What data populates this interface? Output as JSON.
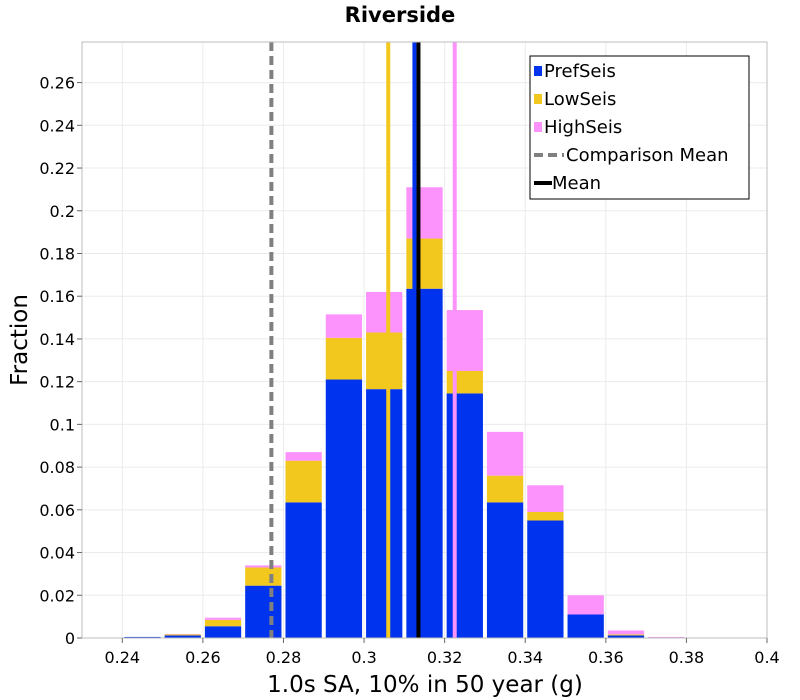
{
  "chart_data": {
    "type": "bar",
    "stacked": true,
    "title": "Riverside",
    "xlabel": "1.0s SA, 10% in 50 year (g)",
    "ylabel": "Fraction",
    "xlim": [
      0.23,
      0.4
    ],
    "ylim": [
      0,
      0.279
    ],
    "bin_width": 0.01,
    "bin_centers": [
      0.245,
      0.255,
      0.265,
      0.275,
      0.285,
      0.295,
      0.305,
      0.315,
      0.325,
      0.335,
      0.345,
      0.355,
      0.365,
      0.375,
      0.385
    ],
    "series": [
      {
        "name": "PrefSeis",
        "color": "#0033ee",
        "values": [
          0.0005,
          0.0012,
          0.0055,
          0.0245,
          0.0635,
          0.121,
          0.1165,
          0.1635,
          0.1145,
          0.0635,
          0.055,
          0.011,
          0.0012,
          0.0002,
          0.0
        ]
      },
      {
        "name": "LowSeis",
        "color": "#f2c81e",
        "values": [
          0.0,
          0.0005,
          0.003,
          0.0085,
          0.0195,
          0.0195,
          0.0265,
          0.0235,
          0.0105,
          0.0125,
          0.004,
          0.0,
          0.0005,
          0.0,
          0.0
        ]
      },
      {
        "name": "HighSeis",
        "color": "#fc92fc",
        "values": [
          0.0,
          0.0002,
          0.001,
          0.001,
          0.004,
          0.011,
          0.019,
          0.024,
          0.0285,
          0.0205,
          0.0125,
          0.009,
          0.0018,
          0.0003,
          0.0002
        ]
      }
    ],
    "vertical_lines": [
      {
        "name": "LowSeis Mean",
        "x": 0.306,
        "color": "#f2c81e",
        "style": "solid"
      },
      {
        "name": "HighSeis Mean",
        "x": 0.3225,
        "color": "#fc92fc",
        "style": "solid"
      },
      {
        "name": "PrefSeis Mean",
        "x": 0.3125,
        "color": "#0033ee",
        "style": "solid"
      },
      {
        "name": "Comparison Mean",
        "x": 0.277,
        "color": "#808080",
        "style": "dashed"
      },
      {
        "name": "Mean",
        "x": 0.3135,
        "color": "#000000",
        "style": "solid"
      }
    ],
    "x_ticks": [
      0.24,
      0.26,
      0.28,
      0.3,
      0.32,
      0.34,
      0.36,
      0.38,
      0.4
    ],
    "x_tick_labels": [
      "0.24",
      "0.26",
      "0.28",
      "0.3",
      "0.32",
      "0.34",
      "0.36",
      "0.38",
      "0.4"
    ],
    "y_ticks": [
      0,
      0.02,
      0.04,
      0.06,
      0.08,
      0.1,
      0.12,
      0.14,
      0.16,
      0.18,
      0.2,
      0.22,
      0.24,
      0.26
    ],
    "y_tick_labels": [
      "0",
      "0.02",
      "0.04",
      "0.06",
      "0.08",
      "0.1",
      "0.12",
      "0.14",
      "0.16",
      "0.18",
      "0.2",
      "0.22",
      "0.24",
      "0.26"
    ],
    "grid": true,
    "legend": {
      "position": "top-right",
      "entries": [
        {
          "label": "PrefSeis",
          "kind": "patch",
          "color": "#0033ee"
        },
        {
          "label": "LowSeis",
          "kind": "patch",
          "color": "#f2c81e"
        },
        {
          "label": "HighSeis",
          "kind": "patch",
          "color": "#fc92fc"
        },
        {
          "label": "Comparison Mean",
          "kind": "dashed-line",
          "color": "#808080"
        },
        {
          "label": "Mean",
          "kind": "line",
          "color": "#000000"
        }
      ]
    }
  }
}
